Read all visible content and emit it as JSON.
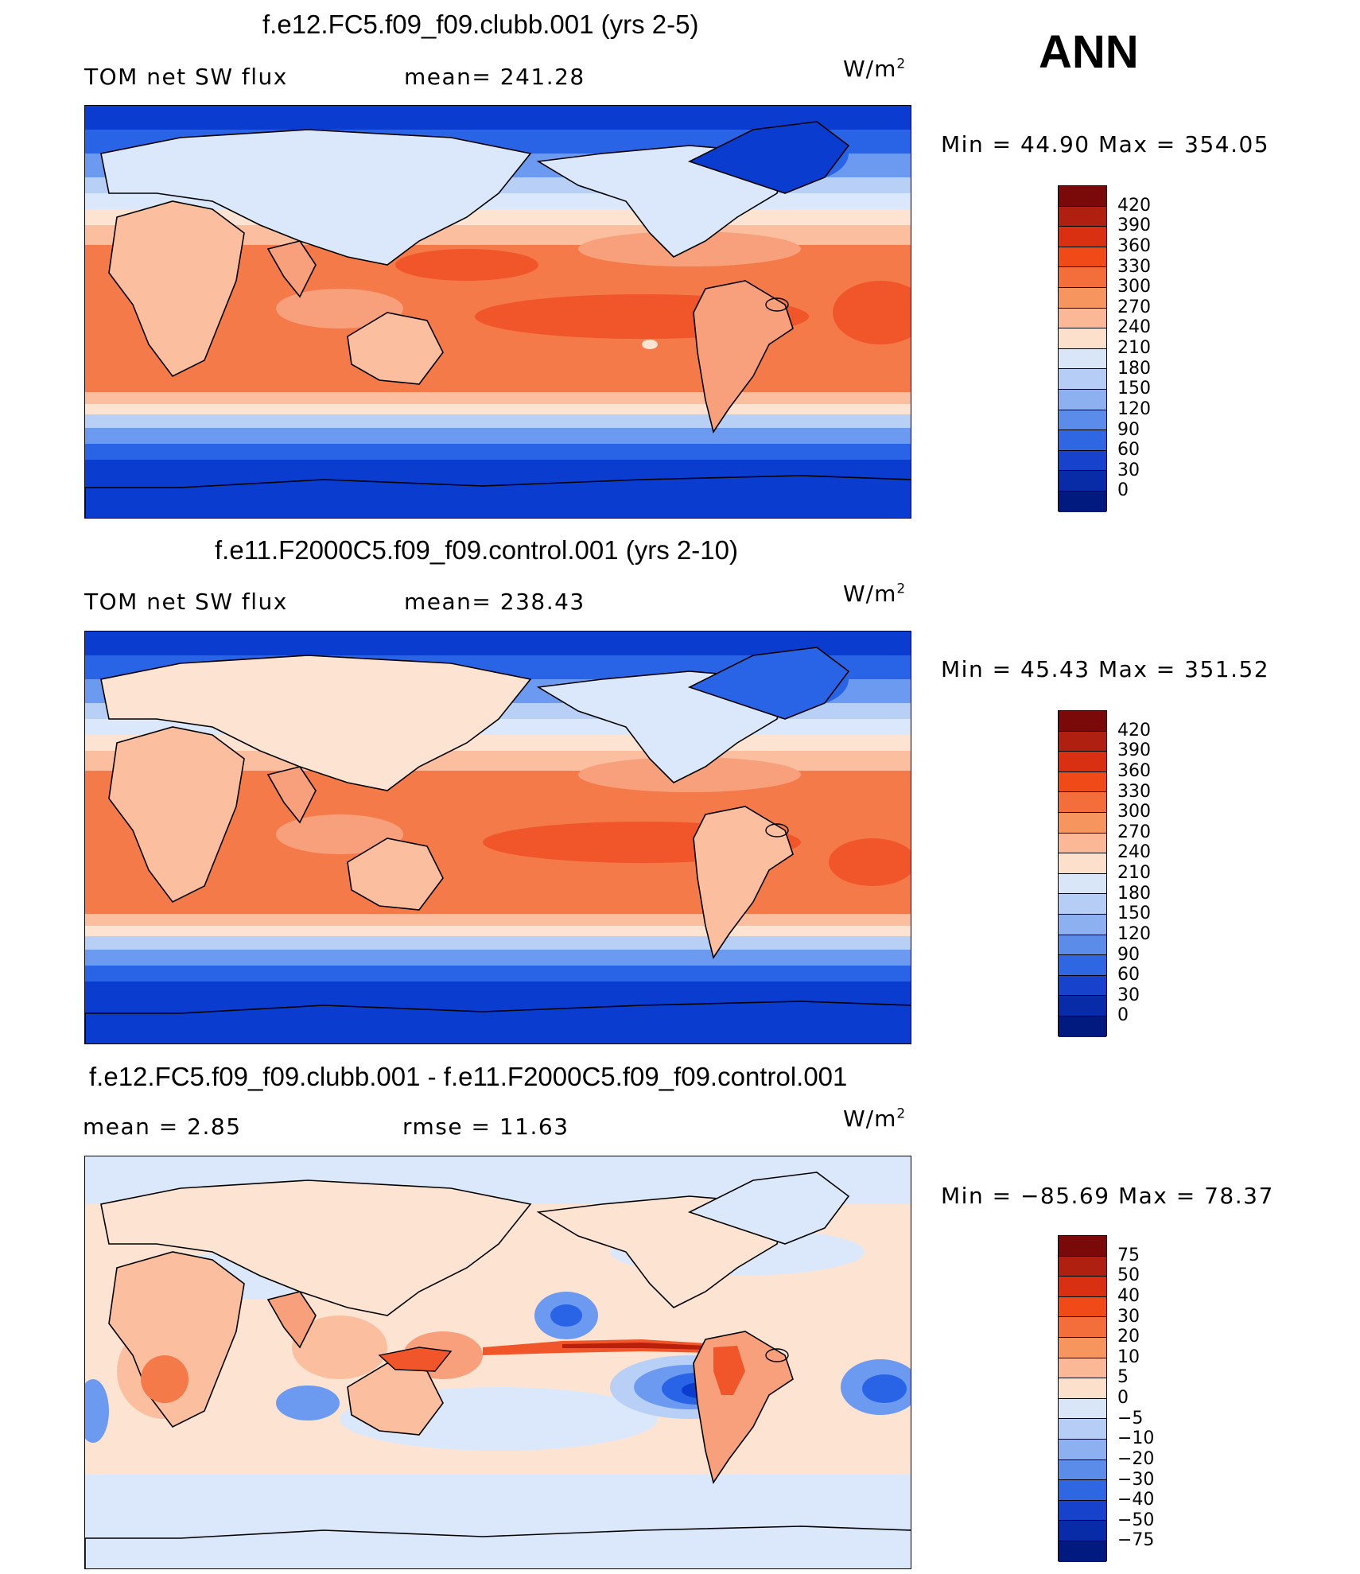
{
  "season": "ANN",
  "panels": [
    {
      "title": "f.e12.FC5.f09_f09.clubb.001 (yrs 2-5)",
      "left_label": "TOM net SW flux",
      "mid_label": "mean= 241.28",
      "units_base": "W/m",
      "units_exp": "2",
      "minmax": "Min =   44.90 Max = 354.05",
      "colorbar_levels": [
        "420",
        "390",
        "360",
        "330",
        "300",
        "270",
        "240",
        "210",
        "180",
        "150",
        "120",
        "90",
        "60",
        "30",
        "0"
      ],
      "colorbar_colors": [
        "#7a0a0a",
        "#b02010",
        "#d83010",
        "#f04a18",
        "#f46e3c",
        "#f7955e",
        "#fab896",
        "#fde0cc",
        "#d8e6f8",
        "#b6cef5",
        "#8cb0f0",
        "#5c8cea",
        "#2f66e2",
        "#1642cc",
        "#082ca8",
        "#001a80"
      ]
    },
    {
      "title": "f.e11.F2000C5.f09_f09.control.001 (yrs 2-10)",
      "left_label": "TOM net SW flux",
      "mid_label": "mean= 238.43",
      "units_base": "W/m",
      "units_exp": "2",
      "minmax": "Min =   45.43 Max = 351.52",
      "colorbar_levels": [
        "420",
        "390",
        "360",
        "330",
        "300",
        "270",
        "240",
        "210",
        "180",
        "150",
        "120",
        "90",
        "60",
        "30",
        "0"
      ],
      "colorbar_colors": [
        "#7a0a0a",
        "#b02010",
        "#d83010",
        "#f04a18",
        "#f46e3c",
        "#f7955e",
        "#fab896",
        "#fde0cc",
        "#d8e6f8",
        "#b6cef5",
        "#8cb0f0",
        "#5c8cea",
        "#2f66e2",
        "#1642cc",
        "#082ca8",
        "#001a80"
      ]
    },
    {
      "title": "f.e12.FC5.f09_f09.clubb.001 - f.e11.F2000C5.f09_f09.control.001",
      "left_label": "mean =     2.85",
      "mid_label": "rmse =    11.63",
      "units_base": "W/m",
      "units_exp": "2",
      "minmax": "Min = −85.69 Max =   78.37",
      "colorbar_levels": [
        "75",
        "50",
        "40",
        "30",
        "20",
        "10",
        "5",
        "0",
        "−5",
        "−10",
        "−20",
        "−30",
        "−40",
        "−50",
        "−75"
      ],
      "colorbar_colors": [
        "#7a0a0a",
        "#b02010",
        "#d83010",
        "#f04a18",
        "#f46e3c",
        "#f7955e",
        "#fab896",
        "#fde0cc",
        "#d8e6f8",
        "#b6cef5",
        "#8cb0f0",
        "#5c8cea",
        "#2f66e2",
        "#1642cc",
        "#082ca8",
        "#001a80"
      ]
    }
  ],
  "palette": {
    "deep_blue": "#0a3ccf",
    "blue": "#2a64e6",
    "mid_blue": "#6b9af0",
    "light_blue": "#b8d0f6",
    "pale_blue": "#dbe8fb",
    "pale_peach": "#fde4d2",
    "peach": "#fbbf9f",
    "salmon": "#f8a07c",
    "orange": "#f57a4a",
    "red_orange": "#f0562a",
    "red": "#e03a18",
    "dark_red": "#b8200c",
    "coast": "#000000"
  }
}
